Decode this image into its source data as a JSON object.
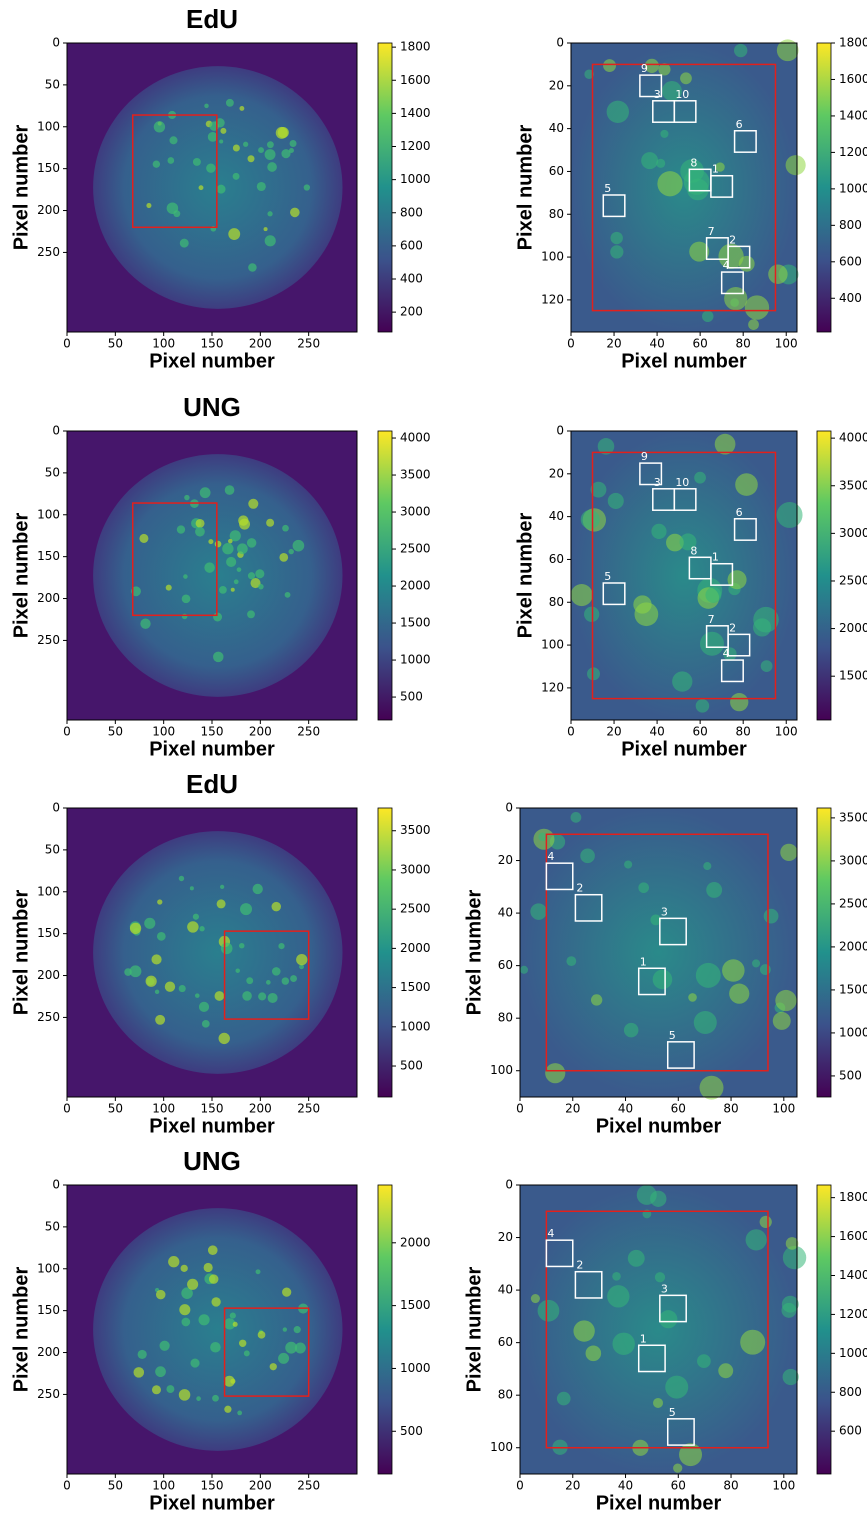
{
  "chart_data": [
    {
      "type": "image",
      "title": "EdU",
      "xlabel": "Pixel number",
      "ylabel": "Pixel number",
      "yinvert": true,
      "xlim": [
        0,
        300
      ],
      "ylim": [
        0,
        345
      ],
      "xticks": [
        0,
        50,
        100,
        150,
        200,
        250
      ],
      "yticks": [
        0,
        50,
        100,
        150,
        200,
        250
      ],
      "colorbar": {
        "lim": [
          80,
          1825
        ],
        "ticks": [
          200,
          400,
          600,
          800,
          1000,
          1200,
          1400,
          1600,
          1800
        ]
      },
      "region": {
        "color": "#e3201c",
        "x": [
          68,
          155
        ],
        "y": [
          86,
          220
        ]
      }
    },
    {
      "type": "image",
      "xlabel": "Pixel number",
      "ylabel": "Pixel number",
      "yinvert": true,
      "xlim": [
        0,
        105
      ],
      "ylim": [
        0,
        135
      ],
      "xticks": [
        0,
        20,
        40,
        60,
        80,
        100
      ],
      "yticks": [
        0,
        20,
        40,
        60,
        80,
        100,
        120
      ],
      "colorbar": {
        "lim": [
          215,
          1800
        ],
        "ticks": [
          400,
          600,
          800,
          1000,
          1200,
          1400,
          1600,
          1800
        ]
      },
      "region": {
        "color": "#e3201c",
        "x": [
          10,
          95
        ],
        "y": [
          10,
          125
        ]
      },
      "roi_color": "#ffffff",
      "rois": [
        {
          "label": "9",
          "x": [
            32,
            42
          ],
          "y": [
            15,
            25
          ]
        },
        {
          "label": "3",
          "x": [
            38,
            48
          ],
          "y": [
            27,
            37
          ]
        },
        {
          "label": "10",
          "x": [
            48,
            58
          ],
          "y": [
            27,
            37
          ]
        },
        {
          "label": "6",
          "x": [
            76,
            86
          ],
          "y": [
            41,
            51
          ]
        },
        {
          "label": "8",
          "x": [
            55,
            65
          ],
          "y": [
            59,
            69
          ]
        },
        {
          "label": "1",
          "x": [
            65,
            75
          ],
          "y": [
            62,
            72
          ]
        },
        {
          "label": "5",
          "x": [
            15,
            25
          ],
          "y": [
            71,
            81
          ]
        },
        {
          "label": "7",
          "x": [
            63,
            73
          ],
          "y": [
            91,
            101
          ]
        },
        {
          "label": "2",
          "x": [
            73,
            83
          ],
          "y": [
            95,
            105
          ]
        },
        {
          "label": "4",
          "x": [
            70,
            80
          ],
          "y": [
            107,
            117
          ]
        }
      ]
    },
    {
      "type": "image",
      "title": "UNG",
      "xlabel": "Pixel number",
      "ylabel": "Pixel number",
      "yinvert": true,
      "xlim": [
        0,
        300
      ],
      "ylim": [
        0,
        345
      ],
      "xticks": [
        0,
        50,
        100,
        150,
        200,
        250
      ],
      "yticks": [
        0,
        50,
        100,
        150,
        200,
        250
      ],
      "colorbar": {
        "lim": [
          190,
          4095
        ],
        "ticks": [
          500,
          1000,
          1500,
          2000,
          2500,
          3000,
          3500,
          4000
        ]
      },
      "region": {
        "color": "#e3201c",
        "x": [
          68,
          155
        ],
        "y": [
          86,
          220
        ]
      }
    },
    {
      "type": "image",
      "xlabel": "Pixel number",
      "ylabel": "Pixel number",
      "yinvert": true,
      "xlim": [
        0,
        105
      ],
      "ylim": [
        0,
        135
      ],
      "xticks": [
        0,
        20,
        40,
        60,
        80,
        100
      ],
      "yticks": [
        0,
        20,
        40,
        60,
        80,
        100,
        120
      ],
      "colorbar": {
        "lim": [
          1040,
          4075
        ],
        "ticks": [
          1500,
          2000,
          2500,
          3000,
          3500,
          4000
        ]
      },
      "region": {
        "color": "#e3201c",
        "x": [
          10,
          95
        ],
        "y": [
          10,
          125
        ]
      },
      "roi_color": "#ffffff",
      "rois": [
        {
          "label": "9",
          "x": [
            32,
            42
          ],
          "y": [
            15,
            25
          ]
        },
        {
          "label": "3",
          "x": [
            38,
            48
          ],
          "y": [
            27,
            37
          ]
        },
        {
          "label": "10",
          "x": [
            48,
            58
          ],
          "y": [
            27,
            37
          ]
        },
        {
          "label": "6",
          "x": [
            76,
            86
          ],
          "y": [
            41,
            51
          ]
        },
        {
          "label": "8",
          "x": [
            55,
            65
          ],
          "y": [
            59,
            69
          ]
        },
        {
          "label": "1",
          "x": [
            65,
            75
          ],
          "y": [
            62,
            72
          ]
        },
        {
          "label": "5",
          "x": [
            15,
            25
          ],
          "y": [
            71,
            81
          ]
        },
        {
          "label": "7",
          "x": [
            63,
            73
          ],
          "y": [
            91,
            101
          ]
        },
        {
          "label": "2",
          "x": [
            73,
            83
          ],
          "y": [
            95,
            105
          ]
        },
        {
          "label": "4",
          "x": [
            70,
            80
          ],
          "y": [
            107,
            117
          ]
        }
      ]
    },
    {
      "type": "image",
      "title": "EdU",
      "xlabel": "Pixel number",
      "ylabel": "Pixel number",
      "yinvert": true,
      "xlim": [
        0,
        300
      ],
      "ylim": [
        0,
        345
      ],
      "xticks": [
        0,
        50,
        100,
        150,
        200,
        250
      ],
      "yticks": [
        0,
        50,
        100,
        150,
        200,
        250
      ],
      "colorbar": {
        "lim": [
          105,
          3790
        ],
        "ticks": [
          500,
          1000,
          1500,
          2000,
          2500,
          3000,
          3500
        ]
      },
      "region": {
        "color": "#e3201c",
        "x": [
          163,
          250
        ],
        "y": [
          147,
          252
        ]
      }
    },
    {
      "type": "image",
      "xlabel": "Pixel number",
      "ylabel": "Pixel number",
      "yinvert": true,
      "xlim": [
        0,
        105
      ],
      "ylim": [
        0,
        110
      ],
      "xticks": [
        0,
        20,
        40,
        60,
        80,
        100
      ],
      "yticks": [
        0,
        20,
        40,
        60,
        80,
        100
      ],
      "colorbar": {
        "lim": [
          255,
          3615
        ],
        "ticks": [
          500,
          1000,
          1500,
          2000,
          2500,
          3000,
          3500
        ]
      },
      "region": {
        "color": "#e3201c",
        "x": [
          10,
          94
        ],
        "y": [
          10,
          100
        ]
      },
      "roi_color": "#ffffff",
      "rois": [
        {
          "label": "4",
          "x": [
            10,
            20
          ],
          "y": [
            21,
            31
          ]
        },
        {
          "label": "2",
          "x": [
            21,
            31
          ],
          "y": [
            33,
            43
          ]
        },
        {
          "label": "3",
          "x": [
            53,
            63
          ],
          "y": [
            42,
            52
          ]
        },
        {
          "label": "1",
          "x": [
            45,
            55
          ],
          "y": [
            61,
            71
          ]
        },
        {
          "label": "5",
          "x": [
            56,
            66
          ],
          "y": [
            89,
            99
          ]
        }
      ]
    },
    {
      "type": "image",
      "title": "UNG",
      "xlabel": "Pixel number",
      "ylabel": "Pixel number",
      "yinvert": true,
      "xlim": [
        0,
        300
      ],
      "ylim": [
        0,
        345
      ],
      "xticks": [
        0,
        50,
        100,
        150,
        200,
        250
      ],
      "yticks": [
        0,
        50,
        100,
        150,
        200,
        250
      ],
      "colorbar": {
        "lim": [
          160,
          2460
        ],
        "ticks": [
          500,
          1000,
          1500,
          2000
        ]
      },
      "region": {
        "color": "#e3201c",
        "x": [
          163,
          250
        ],
        "y": [
          147,
          252
        ]
      }
    },
    {
      "type": "image",
      "xlabel": "Pixel number",
      "ylabel": "Pixel number",
      "yinvert": true,
      "xlim": [
        0,
        105
      ],
      "ylim": [
        0,
        110
      ],
      "xticks": [
        0,
        20,
        40,
        60,
        80,
        100
      ],
      "yticks": [
        0,
        20,
        40,
        60,
        80,
        100
      ],
      "colorbar": {
        "lim": [
          380,
          1865
        ],
        "ticks": [
          600,
          800,
          1000,
          1200,
          1400,
          1600,
          1800
        ]
      },
      "region": {
        "color": "#e3201c",
        "x": [
          10,
          94
        ],
        "y": [
          10,
          100
        ]
      },
      "roi_color": "#ffffff",
      "rois": [
        {
          "label": "4",
          "x": [
            10,
            20
          ],
          "y": [
            21,
            31
          ]
        },
        {
          "label": "2",
          "x": [
            21,
            31
          ],
          "y": [
            33,
            43
          ]
        },
        {
          "label": "3",
          "x": [
            53,
            63
          ],
          "y": [
            42,
            52
          ]
        },
        {
          "label": "1",
          "x": [
            45,
            55
          ],
          "y": [
            61,
            71
          ]
        },
        {
          "label": "5",
          "x": [
            56,
            66
          ],
          "y": [
            89,
            99
          ]
        }
      ]
    }
  ]
}
